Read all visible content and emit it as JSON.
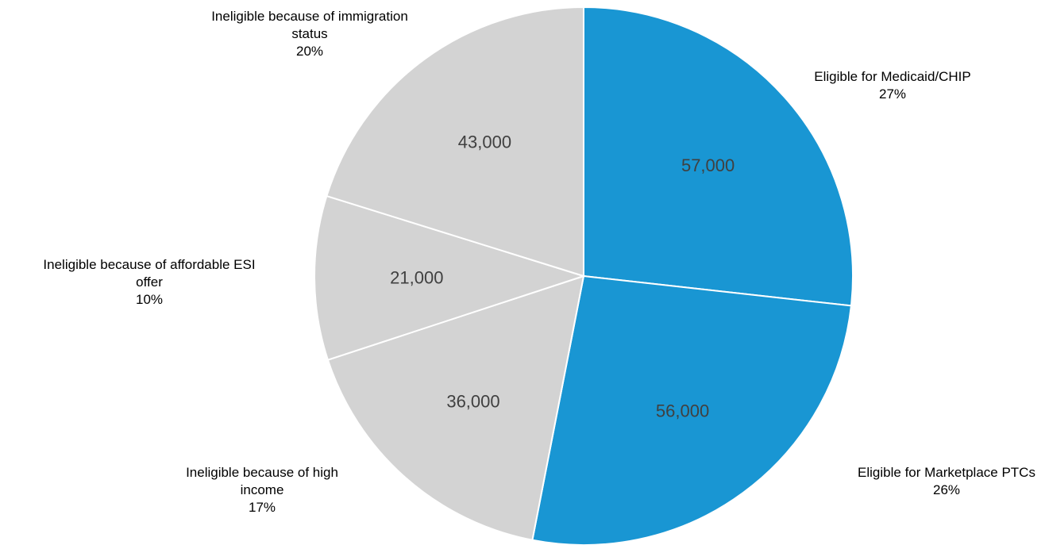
{
  "chart_data": {
    "type": "pie",
    "legend": "none",
    "start_angle_deg": 0,
    "direction": "clockwise",
    "slices": [
      {
        "category_lines": [
          "Eligible for Medicaid/CHIP"
        ],
        "value": 57000,
        "value_label": "57,000",
        "percent_label": "27%",
        "color": "#1996d3"
      },
      {
        "category_lines": [
          "Eligible for Marketplace PTCs"
        ],
        "value": 56000,
        "value_label": "56,000",
        "percent_label": "26%",
        "color": "#1996d3"
      },
      {
        "category_lines": [
          "Ineligible because of  high",
          "income"
        ],
        "value": 36000,
        "value_label": "36,000",
        "percent_label": "17%",
        "color": "#d3d3d3"
      },
      {
        "category_lines": [
          "Ineligible because of affordable ESI",
          "offer"
        ],
        "value": 21000,
        "value_label": "21,000",
        "percent_label": "10%",
        "color": "#d3d3d3"
      },
      {
        "category_lines": [
          "Ineligible because of  immigration",
          "status"
        ],
        "value": 43000,
        "value_label": "43,000",
        "percent_label": "20%",
        "color": "#d3d3d3"
      }
    ]
  }
}
